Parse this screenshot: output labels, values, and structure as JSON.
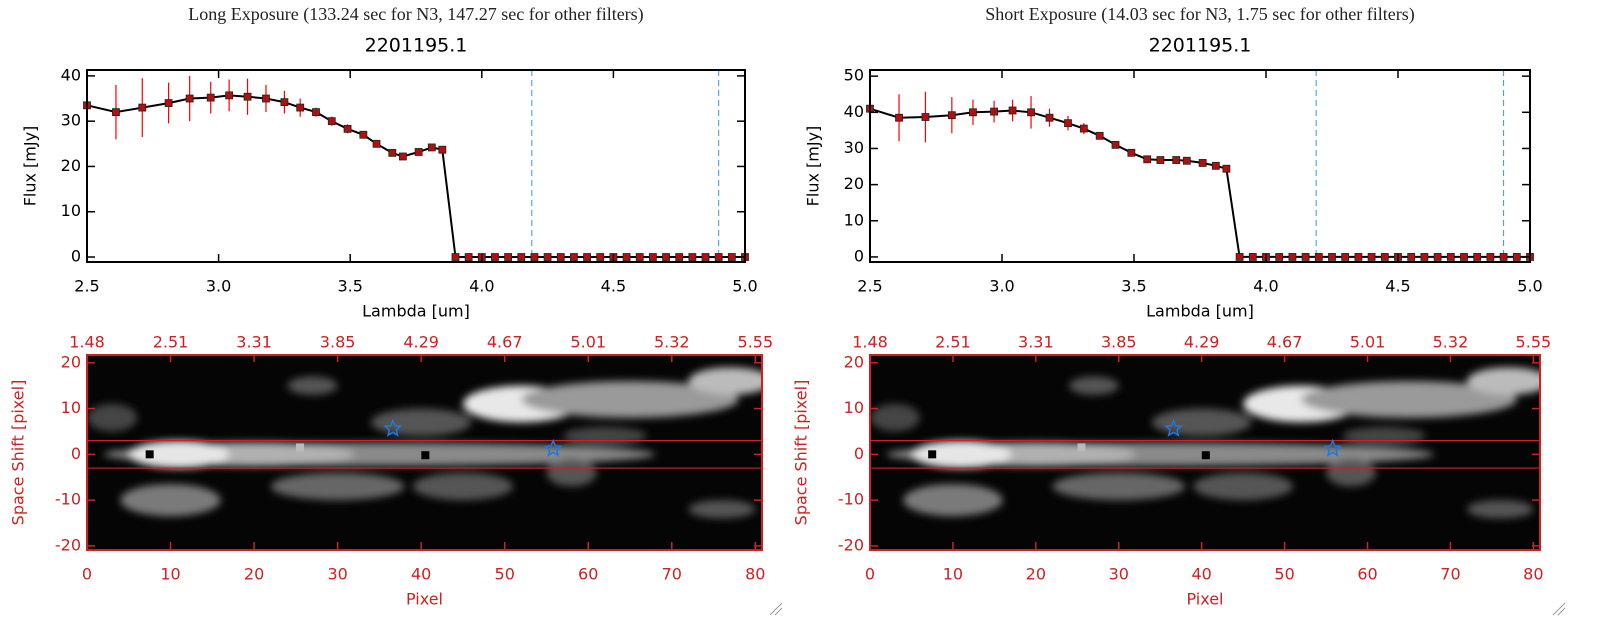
{
  "chart_data": [
    {
      "type": "line",
      "super_title": "Long Exposure (133.24 sec for N3, 147.27 sec for other filters)",
      "title": "2201195.1",
      "x_label": "Lambda [um]",
      "y_label": "Flux [mJy]",
      "x": [
        2.5,
        2.61,
        2.71,
        2.81,
        2.89,
        2.97,
        3.04,
        3.11,
        3.18,
        3.25,
        3.31,
        3.37,
        3.43,
        3.49,
        3.55,
        3.6,
        3.66,
        3.7,
        3.76,
        3.81,
        3.85,
        3.9,
        3.95,
        4.0,
        4.05,
        4.1,
        4.15,
        4.2,
        4.25,
        4.3,
        4.35,
        4.4,
        4.45,
        4.5,
        4.55,
        4.6,
        4.65,
        4.7,
        4.75,
        4.8,
        4.85,
        4.9,
        4.95,
        5.0
      ],
      "values": [
        33.5,
        32,
        33,
        34,
        35,
        35.2,
        35.7,
        35.4,
        35,
        34.2,
        33,
        32,
        30,
        28.3,
        27,
        25,
        23,
        22.2,
        23.2,
        24.2,
        23.7,
        0,
        0,
        0,
        0,
        0,
        0,
        0,
        0,
        0,
        0,
        0,
        0,
        0,
        0,
        0,
        0,
        0,
        0,
        0,
        0,
        0,
        0,
        0
      ],
      "errors": [
        1,
        6,
        6.5,
        4.5,
        5,
        3.5,
        3.5,
        4,
        3,
        2.5,
        2,
        1,
        1,
        1,
        0.5,
        0.5,
        0.5,
        0.5,
        0.5,
        0.5,
        0.5,
        0,
        0,
        0,
        0,
        0,
        0,
        0,
        0,
        0,
        0,
        0,
        0,
        0,
        0,
        0,
        0,
        0,
        0,
        0,
        0,
        0,
        0,
        0
      ],
      "color": "#000000",
      "marker_color": "#b01010",
      "error_color": "#ff0000",
      "axis_color": "#000000",
      "vlines": [
        4.19,
        4.9
      ],
      "vline_color": "#3399dd",
      "xlim": [
        2.5,
        5.0
      ],
      "ylim": [
        -1.1,
        41.3
      ],
      "xticks": [
        2.5,
        {
          "value": 3,
          "label": "3.0"
        },
        3.5,
        {
          "value": 4,
          "label": "4.0"
        },
        4.5,
        {
          "value": 5,
          "label": "5.0"
        }
      ],
      "yticks": [
        0,
        10,
        20,
        30,
        40
      ]
    },
    {
      "type": "image",
      "x_label": "Pixel",
      "y_label": "Space Shift [pixel]",
      "axis_color": "#cc2222",
      "hlines": [
        3,
        -3
      ],
      "hline_color": "#cc2222",
      "markers": [
        {
          "x": 7.5,
          "y": 0,
          "shape": "square",
          "color": "#000000"
        },
        {
          "x": 25.5,
          "y": 1.5,
          "shape": "square",
          "color": "#bbbbbb"
        },
        {
          "x": 40.5,
          "y": -0.2,
          "shape": "square",
          "color": "#000000"
        },
        {
          "x": 36.6,
          "y": 5.6,
          "shape": "star",
          "color": "#2277dd"
        },
        {
          "x": 55.8,
          "y": 1.2,
          "shape": "star",
          "color": "#2277dd"
        }
      ],
      "xlim": [
        0,
        80.8
      ],
      "ylim": [
        -20.9,
        21.7
      ],
      "xticks": [
        0,
        10,
        20,
        30,
        40,
        50,
        60,
        70,
        80
      ],
      "x2ticks": [
        {
          "value": 0,
          "label": "1.48"
        },
        {
          "value": 10,
          "label": "2.51"
        },
        {
          "value": 20,
          "label": "3.31"
        },
        {
          "value": 30,
          "label": "3.85"
        },
        {
          "value": 40,
          "label": "4.29"
        },
        {
          "value": 50,
          "label": "4.67"
        },
        {
          "value": 60,
          "label": "5.01"
        },
        {
          "value": 70,
          "label": "5.32"
        },
        {
          "value": 80,
          "label": "5.55"
        }
      ],
      "yticks": [
        -20,
        -10,
        0,
        10,
        20
      ]
    },
    {
      "type": "line",
      "super_title": "Short Exposure (14.03 sec for N3, 1.75 sec for other filters)",
      "title": "2201195.1",
      "x_label": "Lambda [um]",
      "y_label": "Flux [mJy]",
      "x": [
        2.5,
        2.61,
        2.71,
        2.81,
        2.89,
        2.97,
        3.04,
        3.11,
        3.18,
        3.25,
        3.31,
        3.37,
        3.43,
        3.49,
        3.55,
        3.6,
        3.66,
        3.7,
        3.76,
        3.81,
        3.85,
        3.9,
        3.95,
        4.0,
        4.05,
        4.1,
        4.15,
        4.2,
        4.25,
        4.3,
        4.35,
        4.4,
        4.45,
        4.5,
        4.55,
        4.6,
        4.65,
        4.7,
        4.75,
        4.8,
        4.85,
        4.9,
        4.95,
        5.0
      ],
      "values": [
        41,
        38.5,
        38.7,
        39.2,
        40,
        40.2,
        40.5,
        40,
        38.5,
        37,
        35.5,
        33.5,
        31,
        28.8,
        27,
        26.8,
        26.8,
        26.6,
        26,
        25.2,
        24.4,
        0,
        0,
        0,
        0,
        0,
        0,
        0,
        0,
        0,
        0,
        0,
        0,
        0,
        0,
        0,
        0,
        0,
        0,
        0,
        0,
        0,
        0,
        0
      ],
      "errors": [
        1,
        6.5,
        7,
        5,
        3.5,
        3,
        3,
        4.5,
        2.5,
        2,
        1.5,
        1,
        1,
        1,
        0.5,
        0.5,
        0.5,
        0.5,
        0.5,
        0.5,
        0.5,
        0,
        0,
        0,
        0,
        0,
        0,
        0,
        0,
        0,
        0,
        0,
        0,
        0,
        0,
        0,
        0,
        0,
        0,
        0,
        0,
        0,
        0,
        0
      ],
      "color": "#000000",
      "marker_color": "#b01010",
      "error_color": "#ff0000",
      "axis_color": "#000000",
      "vlines": [
        4.19,
        4.9
      ],
      "vline_color": "#3399dd",
      "xlim": [
        2.5,
        5.0
      ],
      "ylim": [
        -1.4,
        51.7
      ],
      "xticks": [
        2.5,
        {
          "value": 3,
          "label": "3.0"
        },
        3.5,
        {
          "value": 4,
          "label": "4.0"
        },
        4.5,
        {
          "value": 5,
          "label": "5.0"
        }
      ],
      "yticks": [
        0,
        10,
        20,
        30,
        40,
        50
      ]
    },
    {
      "type": "image",
      "x_label": "Pixel",
      "y_label": "Space Shift [pixel]",
      "axis_color": "#cc2222",
      "hlines": [
        3,
        -3
      ],
      "hline_color": "#cc2222",
      "markers": [
        {
          "x": 7.5,
          "y": 0,
          "shape": "square",
          "color": "#000000"
        },
        {
          "x": 25.5,
          "y": 1.5,
          "shape": "square",
          "color": "#bbbbbb"
        },
        {
          "x": 40.5,
          "y": -0.2,
          "shape": "square",
          "color": "#000000"
        },
        {
          "x": 36.6,
          "y": 5.6,
          "shape": "star",
          "color": "#2277dd"
        },
        {
          "x": 55.8,
          "y": 1.2,
          "shape": "star",
          "color": "#2277dd"
        }
      ],
      "xlim": [
        0,
        80.8
      ],
      "ylim": [
        -20.9,
        21.7
      ],
      "xticks": [
        0,
        10,
        20,
        30,
        40,
        50,
        60,
        70,
        80
      ],
      "x2ticks": [
        {
          "value": 0,
          "label": "1.48"
        },
        {
          "value": 10,
          "label": "2.51"
        },
        {
          "value": 20,
          "label": "3.31"
        },
        {
          "value": 30,
          "label": "3.85"
        },
        {
          "value": 40,
          "label": "4.29"
        },
        {
          "value": 50,
          "label": "4.67"
        },
        {
          "value": 60,
          "label": "5.01"
        },
        {
          "value": 70,
          "label": "5.32"
        },
        {
          "value": 80,
          "label": "5.55"
        }
      ],
      "yticks": [
        -20,
        -10,
        0,
        10,
        20
      ]
    }
  ]
}
